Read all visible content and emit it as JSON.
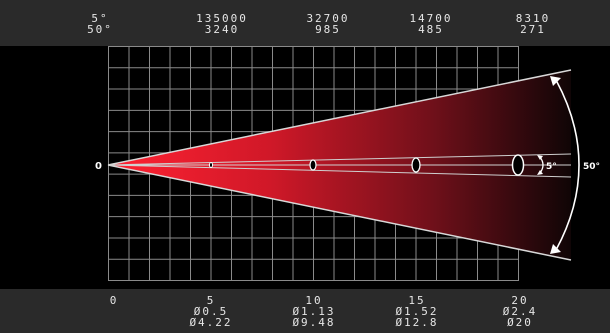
{
  "header": {
    "columns": [
      {
        "line1": "5°",
        "line2": "50°"
      },
      {
        "line1": "135000",
        "line2": "3240"
      },
      {
        "line1": "32700",
        "line2": "985"
      },
      {
        "line1": "14700",
        "line2": "485"
      },
      {
        "line1": "8310",
        "line2": "271"
      }
    ]
  },
  "footer": {
    "columns": [
      {
        "line1": "0",
        "line2": "",
        "line3": ""
      },
      {
        "line1": "5",
        "line2": "Ø0.5",
        "line3": "Ø4.22"
      },
      {
        "line1": "10",
        "line2": "Ø1.13",
        "line3": "Ø9.48"
      },
      {
        "line1": "15",
        "line2": "Ø1.52",
        "line3": "Ø12.8"
      },
      {
        "line1": "20",
        "line2": "Ø2.4",
        "line3": "Ø20"
      }
    ]
  },
  "diagram": {
    "origin_label": "0",
    "narrow_angle_label": "5°",
    "wide_angle_label": "50°"
  },
  "colors": {
    "beam_red": "#ff2230",
    "grid": "#8a8a8a",
    "background": "#000000",
    "band": "#2a2a2a"
  }
}
